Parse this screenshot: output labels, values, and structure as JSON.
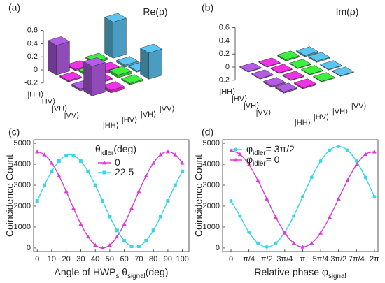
{
  "chart_data": [
    {
      "type": "bar3d",
      "panel": "(a)",
      "title": "Re(ρ)",
      "rows": [
        "|HH⟩",
        "|HV⟩",
        "|VH⟩",
        "|VV⟩"
      ],
      "cols": [
        "|HH⟩",
        "|HV⟩",
        "|VH⟩",
        "|VV⟩"
      ],
      "values": [
        [
          0.45,
          -0.02,
          0.03,
          0.55
        ],
        [
          0.02,
          0.03,
          -0.04,
          -0.03
        ],
        [
          -0.03,
          0.02,
          0.04,
          0.02
        ],
        [
          0.45,
          -0.04,
          0.02,
          0.4
        ]
      ],
      "colors": [
        [
          "#b45ce8",
          "#f032e6",
          "#3ef03e",
          "#5cc4f0"
        ],
        [
          "#f032e6",
          "#3ef03e",
          "#f032e6",
          "#5cc4f0"
        ],
        [
          "#b45ce8",
          "#f032e6",
          "#3ef03e",
          "#5cc4f0"
        ],
        [
          "#b45ce8",
          "#f032e6",
          "#3ef03e",
          "#5cc4f0"
        ]
      ],
      "zlim": [
        -0.2,
        0.6
      ],
      "zticks": [
        -0.2,
        0,
        0.2,
        0.4,
        0.6
      ]
    },
    {
      "type": "bar3d",
      "panel": "(b)",
      "title": "Im(ρ)",
      "rows": [
        "|HH⟩",
        "|HV⟩",
        "|VH⟩",
        "|VV⟩"
      ],
      "cols": [
        "|HH⟩",
        "|HV⟩",
        "|VH⟩",
        "|VV⟩"
      ],
      "values": [
        [
          0.01,
          -0.01,
          0.02,
          -0.02
        ],
        [
          0.01,
          0.01,
          -0.01,
          0.02
        ],
        [
          -0.02,
          0.01,
          0.01,
          -0.01
        ],
        [
          0.02,
          -0.02,
          0.01,
          0.01
        ]
      ],
      "colors": [
        [
          "#b45ce8",
          "#f032e6",
          "#3ef03e",
          "#5cc4f0"
        ],
        [
          "#b45ce8",
          "#f032e6",
          "#3ef03e",
          "#5cc4f0"
        ],
        [
          "#b45ce8",
          "#f032e6",
          "#3ef03e",
          "#5cc4f0"
        ],
        [
          "#b45ce8",
          "#f032e6",
          "#3ef03e",
          "#5cc4f0"
        ]
      ],
      "zlim": [
        -0.2,
        0.6
      ],
      "zticks": [
        -0.2,
        0,
        0.2,
        0.4,
        0.6
      ]
    },
    {
      "type": "line",
      "panel": "(c)",
      "y_label": "Coincidence Count",
      "x_label": [
        "Angle of HWP",
        "s",
        " θ",
        "signal",
        "(deg)"
      ],
      "legend_title": [
        "θ",
        "idler",
        "(deg)"
      ],
      "x": [
        0,
        5,
        10,
        15,
        20,
        25,
        30,
        35,
        40,
        45,
        50,
        55,
        60,
        65,
        70,
        75,
        80,
        85,
        90,
        95,
        100
      ],
      "series": [
        {
          "name": [
            "0"
          ],
          "color": "#dc3ad8",
          "marker": "triangle",
          "values": [
            4600,
            4460,
            4060,
            3450,
            2700,
            1900,
            1150,
            540,
            140,
            0,
            140,
            540,
            1150,
            1900,
            2700,
            3450,
            4060,
            4460,
            4600,
            4460,
            4060
          ]
        },
        {
          "name": [
            "22.5"
          ],
          "color": "#3ad6e6",
          "marker": "square",
          "values": [
            2250,
            3000,
            3660,
            4150,
            4420,
            4420,
            4150,
            3660,
            3000,
            2250,
            1500,
            840,
            350,
            80,
            80,
            350,
            840,
            1500,
            2250,
            3000,
            3660
          ]
        }
      ],
      "xlim": [
        -2.5,
        104.5
      ],
      "xticks": [
        0,
        10,
        20,
        30,
        40,
        50,
        60,
        70,
        80,
        90,
        100
      ],
      "ylim": [
        -170,
        5170
      ],
      "yticks": [
        0,
        1000,
        2000,
        3000,
        4000,
        5000
      ]
    },
    {
      "type": "line",
      "panel": "(d)",
      "y_label": "Coincidence Count",
      "x_label": [
        "Relative phase φ",
        "signal"
      ],
      "x": [
        0,
        0.3927,
        0.7854,
        1.1781,
        1.5708,
        1.9635,
        2.3562,
        2.7489,
        3.1416,
        3.5343,
        3.927,
        4.3197,
        4.7124,
        5.1051,
        5.4978,
        5.8905,
        6.2832
      ],
      "series": [
        {
          "name": [
            "φ",
            "idler",
            "= 3π/2"
          ],
          "color": "#3ad6e6",
          "marker": "circle",
          "values": [
            2250,
            1530,
            750,
            230,
            50,
            230,
            750,
            1530,
            2450,
            3370,
            4150,
            4670,
            4850,
            4670,
            4150,
            3370,
            2450
          ]
        },
        {
          "name": [
            "φ",
            "idler",
            "= 0"
          ],
          "color": "#dc3ad8",
          "marker": "triangle",
          "values": [
            4650,
            4480,
            3980,
            3230,
            2350,
            1470,
            720,
            230,
            50,
            230,
            720,
            1470,
            2350,
            3230,
            3980,
            4480,
            4600
          ]
        }
      ],
      "xlim": [
        -0.37,
        6.44
      ],
      "xticks": [
        0,
        {
          "value": 0.7854,
          "label": "π/4"
        },
        {
          "value": 1.5708,
          "label": "π/2"
        },
        {
          "value": 2.3562,
          "label": "3π/4"
        },
        {
          "value": 3.1416,
          "label": "π"
        },
        {
          "value": 3.927,
          "label": "5π/4"
        },
        {
          "value": 4.7124,
          "label": "3π/2"
        },
        {
          "value": 5.4978,
          "label": "7π/4"
        },
        {
          "value": 6.2832,
          "label": "2π"
        }
      ],
      "ylim": [
        -170,
        5170
      ],
      "yticks": [
        0,
        1000,
        2000,
        3000,
        4000,
        5000
      ]
    }
  ]
}
